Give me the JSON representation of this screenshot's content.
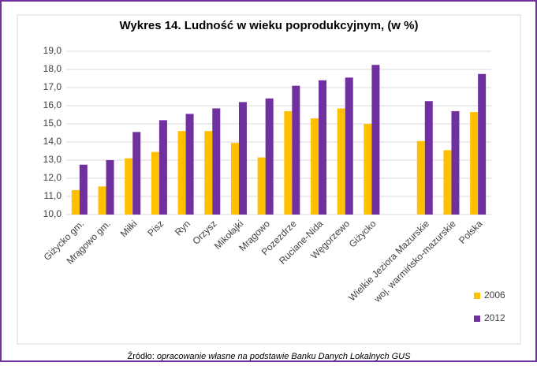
{
  "chart_data": {
    "type": "bar",
    "title": "Wykres 14. Ludność w wieku poprodukcyjnym, (w %)",
    "categories": [
      "Giżycko gm.",
      "Mrągowo gm.",
      "Miłki",
      "Pisz",
      "Ryn",
      "Orzysz",
      "Mikołajki",
      "Mrągowo",
      "Pozezdrze",
      "Ruciane-Nida",
      "Węgorzewo",
      "Giżycko",
      null,
      "Wielkie Jeziora Mazurskie",
      "woj. warmińsko-mazurskie",
      "Polska"
    ],
    "series": [
      {
        "name": "2006",
        "color": "#ffc000",
        "values": [
          11.35,
          11.55,
          13.1,
          13.45,
          14.6,
          14.6,
          13.95,
          13.15,
          15.7,
          15.3,
          15.85,
          15.0,
          null,
          14.05,
          13.55,
          15.65
        ]
      },
      {
        "name": "2012",
        "color": "#7030a0",
        "values": [
          12.75,
          13.0,
          14.55,
          15.2,
          15.55,
          15.85,
          16.2,
          16.4,
          17.1,
          17.4,
          17.55,
          18.25,
          null,
          16.25,
          15.7,
          17.75
        ]
      }
    ],
    "ylim": [
      10,
      19
    ],
    "yticks": [
      {
        "value": 10,
        "label": "10,0"
      },
      {
        "value": 11,
        "label": "11,0"
      },
      {
        "value": 12,
        "label": "12,0"
      },
      {
        "value": 13,
        "label": "13,0"
      },
      {
        "value": 14,
        "label": "14,0"
      },
      {
        "value": 15,
        "label": "15,0"
      },
      {
        "value": 16,
        "label": "16,0"
      },
      {
        "value": 17,
        "label": "17,0"
      },
      {
        "value": 18,
        "label": "18,0"
      },
      {
        "value": 19,
        "label": "19,0"
      }
    ],
    "grid": true,
    "legend": "bottom-right",
    "source_label": "Źródło:",
    "source": "opracowanie własne na podstawie Banku Danych Lokalnych GUS"
  }
}
